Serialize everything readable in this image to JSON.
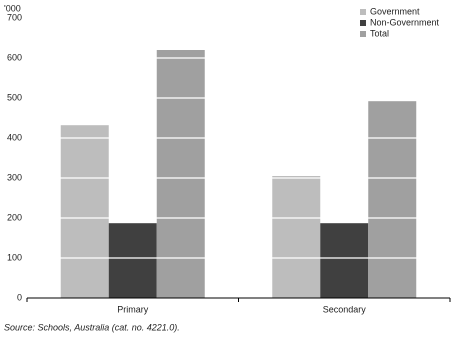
{
  "chart_data": {
    "type": "bar",
    "y_label": "'000",
    "categories": [
      "Primary",
      "Secondary"
    ],
    "series": [
      {
        "name": "Government",
        "color": "#bdbdbd",
        "values": [
          432,
          305
        ]
      },
      {
        "name": "Non-Government",
        "color": "#404040",
        "values": [
          187,
          187
        ]
      },
      {
        "name": "Total",
        "color": "#a0a0a0",
        "values": [
          620,
          492
        ]
      }
    ],
    "ylim": [
      0,
      700
    ],
    "yticks": [
      0,
      100,
      200,
      300,
      400,
      500,
      600,
      700
    ],
    "grid": true,
    "legend": "top-right",
    "source": "Source: Schools, Australia (cat. no. 4221.0)."
  }
}
